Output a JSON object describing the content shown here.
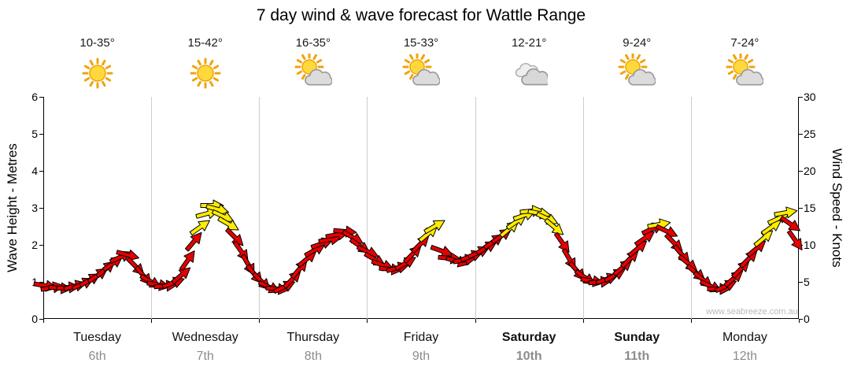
{
  "title": "7 day wind & wave forecast for Wattle Range",
  "watermark": "www.seabreeze.com.au",
  "axes": {
    "left_label": "Wave Height - Metres",
    "right_label": "Wind Speed - Knots",
    "left_ticks": [
      0,
      1,
      2,
      3,
      4,
      5,
      6
    ],
    "right_ticks": [
      0,
      5,
      10,
      15,
      20,
      25,
      30
    ]
  },
  "days": [
    {
      "name": "Tuesday",
      "date": "6th",
      "temp": "10-35°",
      "icon": "sunny",
      "bold": false
    },
    {
      "name": "Wednesday",
      "date": "7th",
      "temp": "15-42°",
      "icon": "sunny",
      "bold": false
    },
    {
      "name": "Thursday",
      "date": "8th",
      "temp": "16-35°",
      "icon": "partly-cloudy",
      "bold": false
    },
    {
      "name": "Friday",
      "date": "9th",
      "temp": "15-33°",
      "icon": "partly-cloudy",
      "bold": false
    },
    {
      "name": "Saturday",
      "date": "10th",
      "temp": "12-21°",
      "icon": "cloudy",
      "bold": true
    },
    {
      "name": "Sunday",
      "date": "11th",
      "temp": "9-24°",
      "icon": "partly-cloudy",
      "bold": true
    },
    {
      "name": "Monday",
      "date": "12th",
      "temp": "7-24°",
      "icon": "partly-cloudy",
      "bold": false
    }
  ],
  "colors": {
    "arrow_red": "#e60000",
    "arrow_yellow": "#ffec00",
    "arrow_outline": "#000000",
    "grid": "#cccccc",
    "axis": "#000000",
    "date_text": "#8c8c8c",
    "watermark_text": "#b9b9b9"
  },
  "chart_data": {
    "type": "scatter",
    "title": "7 day wind & wave forecast for Wattle Range",
    "x_axis": "time (days, Tuesday 6th through Monday 12th)",
    "y_left_label": "Wave Height - Metres",
    "y_right_label": "Wind Speed - Knots",
    "x_range_days": [
      0,
      7
    ],
    "ylim_left_metres": [
      0,
      6
    ],
    "ylim_right_knots": [
      0,
      30
    ],
    "scale_note": "shared plot area: 1 metre on left axis aligns with 5 knots on right axis",
    "point_format": "[day_offset_from_tuesday_start, wind_speed_knots, arrow_rotation_deg_clockwise_0_is_east, color r=red y=yellow]",
    "arrows": [
      [
        0.02,
        4.5,
        10,
        "r"
      ],
      [
        0.09,
        4.3,
        -10,
        "r"
      ],
      [
        0.16,
        4.2,
        5,
        "r"
      ],
      [
        0.23,
        4.3,
        -5,
        "r"
      ],
      [
        0.3,
        4.5,
        -15,
        "r"
      ],
      [
        0.37,
        4.8,
        -25,
        "r"
      ],
      [
        0.44,
        5.3,
        -30,
        "r"
      ],
      [
        0.51,
        6.0,
        -35,
        "r"
      ],
      [
        0.58,
        6.8,
        -40,
        "r"
      ],
      [
        0.65,
        7.6,
        -35,
        "r"
      ],
      [
        0.72,
        8.4,
        -25,
        "r"
      ],
      [
        0.79,
        8.6,
        15,
        "r"
      ],
      [
        0.86,
        7.0,
        45,
        "r"
      ],
      [
        0.93,
        5.8,
        50,
        "r"
      ],
      [
        1.0,
        5.0,
        30,
        "r"
      ],
      [
        1.07,
        4.6,
        10,
        "r"
      ],
      [
        1.14,
        4.5,
        -5,
        "r"
      ],
      [
        1.21,
        4.9,
        -20,
        "r"
      ],
      [
        1.28,
        6.0,
        -40,
        "r"
      ],
      [
        1.34,
        8.0,
        -55,
        "r"
      ],
      [
        1.4,
        10.5,
        -50,
        "r"
      ],
      [
        1.46,
        12.5,
        -35,
        "y"
      ],
      [
        1.52,
        14.3,
        -15,
        "y"
      ],
      [
        1.57,
        15.3,
        0,
        "y"
      ],
      [
        1.62,
        14.8,
        15,
        "y"
      ],
      [
        1.67,
        13.8,
        25,
        "y"
      ],
      [
        1.72,
        12.8,
        30,
        "y"
      ],
      [
        1.78,
        11.0,
        45,
        "r"
      ],
      [
        1.84,
        9.0,
        55,
        "r"
      ],
      [
        1.9,
        7.2,
        60,
        "r"
      ],
      [
        1.96,
        6.0,
        50,
        "r"
      ],
      [
        2.03,
        5.0,
        45,
        "r"
      ],
      [
        2.1,
        4.3,
        25,
        "r"
      ],
      [
        2.17,
        4.0,
        5,
        "r"
      ],
      [
        2.24,
        4.4,
        -25,
        "r"
      ],
      [
        2.31,
        5.4,
        -45,
        "r"
      ],
      [
        2.38,
        6.8,
        -50,
        "r"
      ],
      [
        2.45,
        8.2,
        -40,
        "r"
      ],
      [
        2.52,
        9.4,
        -30,
        "r"
      ],
      [
        2.59,
        10.2,
        -20,
        "r"
      ],
      [
        2.66,
        10.8,
        -10,
        "r"
      ],
      [
        2.73,
        11.4,
        -10,
        "r"
      ],
      [
        2.8,
        11.8,
        5,
        "r"
      ],
      [
        2.87,
        11.0,
        30,
        "r"
      ],
      [
        2.94,
        9.8,
        35,
        "r"
      ],
      [
        3.01,
        9.0,
        25,
        "r"
      ],
      [
        3.08,
        8.0,
        30,
        "r"
      ],
      [
        3.15,
        7.2,
        20,
        "r"
      ],
      [
        3.22,
        6.7,
        5,
        "r"
      ],
      [
        3.29,
        6.9,
        -15,
        "r"
      ],
      [
        3.36,
        7.6,
        -30,
        "r"
      ],
      [
        3.43,
        8.8,
        -45,
        "r"
      ],
      [
        3.5,
        10.2,
        -45,
        "r"
      ],
      [
        3.57,
        11.6,
        -40,
        "y"
      ],
      [
        3.63,
        12.6,
        -30,
        "y"
      ],
      [
        3.7,
        9.2,
        20,
        "r"
      ],
      [
        3.77,
        8.2,
        5,
        "r"
      ],
      [
        3.84,
        7.8,
        15,
        "r"
      ],
      [
        3.91,
        8.0,
        -10,
        "r"
      ],
      [
        3.97,
        8.5,
        -20,
        "r"
      ],
      [
        4.04,
        9.0,
        -25,
        "r"
      ],
      [
        4.11,
        9.7,
        -30,
        "r"
      ],
      [
        4.18,
        10.5,
        -35,
        "r"
      ],
      [
        4.25,
        11.3,
        -35,
        "r"
      ],
      [
        4.32,
        12.2,
        -40,
        "y"
      ],
      [
        4.39,
        13.2,
        -35,
        "y"
      ],
      [
        4.46,
        14.0,
        -20,
        "y"
      ],
      [
        4.53,
        14.6,
        -5,
        "y"
      ],
      [
        4.6,
        14.3,
        10,
        "y"
      ],
      [
        4.67,
        13.5,
        25,
        "y"
      ],
      [
        4.74,
        12.3,
        40,
        "y"
      ],
      [
        4.81,
        10.2,
        55,
        "r"
      ],
      [
        4.88,
        8.0,
        60,
        "r"
      ],
      [
        4.95,
        6.4,
        50,
        "r"
      ],
      [
        5.02,
        5.5,
        35,
        "r"
      ],
      [
        5.09,
        5.1,
        10,
        "r"
      ],
      [
        5.16,
        5.0,
        -5,
        "r"
      ],
      [
        5.23,
        5.4,
        -20,
        "r"
      ],
      [
        5.3,
        6.0,
        -30,
        "r"
      ],
      [
        5.37,
        7.0,
        -40,
        "r"
      ],
      [
        5.44,
        8.2,
        -45,
        "r"
      ],
      [
        5.51,
        9.6,
        -40,
        "r"
      ],
      [
        5.58,
        11.0,
        -35,
        "r"
      ],
      [
        5.65,
        12.2,
        -25,
        "r"
      ],
      [
        5.71,
        12.8,
        -10,
        "y"
      ],
      [
        5.78,
        11.8,
        25,
        "r"
      ],
      [
        5.85,
        10.2,
        45,
        "r"
      ],
      [
        5.92,
        8.6,
        50,
        "r"
      ],
      [
        5.98,
        7.4,
        40,
        "r"
      ],
      [
        6.05,
        6.2,
        40,
        "r"
      ],
      [
        6.12,
        5.2,
        40,
        "r"
      ],
      [
        6.19,
        4.4,
        25,
        "r"
      ],
      [
        6.26,
        4.0,
        0,
        "r"
      ],
      [
        6.33,
        4.5,
        -25,
        "r"
      ],
      [
        6.4,
        5.5,
        -40,
        "r"
      ],
      [
        6.47,
        6.8,
        -45,
        "r"
      ],
      [
        6.54,
        8.2,
        -45,
        "r"
      ],
      [
        6.61,
        9.6,
        -40,
        "r"
      ],
      [
        6.68,
        11.0,
        -40,
        "y"
      ],
      [
        6.75,
        12.4,
        -35,
        "y"
      ],
      [
        6.82,
        13.6,
        -25,
        "y"
      ],
      [
        6.88,
        14.4,
        -10,
        "y"
      ],
      [
        6.93,
        12.8,
        35,
        "r"
      ],
      [
        6.97,
        10.5,
        55,
        "r"
      ]
    ]
  }
}
